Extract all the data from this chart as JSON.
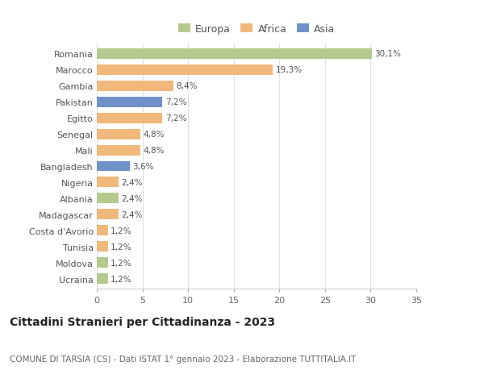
{
  "countries": [
    "Romania",
    "Marocco",
    "Gambia",
    "Pakistan",
    "Egitto",
    "Senegal",
    "Mali",
    "Bangladesh",
    "Nigeria",
    "Albania",
    "Madagascar",
    "Costa d'Avorio",
    "Tunisia",
    "Moldova",
    "Ucraina"
  ],
  "values": [
    30.1,
    19.3,
    8.4,
    7.2,
    7.2,
    4.8,
    4.8,
    3.6,
    2.4,
    2.4,
    2.4,
    1.2,
    1.2,
    1.2,
    1.2
  ],
  "labels": [
    "30,1%",
    "19,3%",
    "8,4%",
    "7,2%",
    "7,2%",
    "4,8%",
    "4,8%",
    "3,6%",
    "2,4%",
    "2,4%",
    "2,4%",
    "1,2%",
    "1,2%",
    "1,2%",
    "1,2%"
  ],
  "regions": [
    "Europa",
    "Africa",
    "Africa",
    "Asia",
    "Africa",
    "Africa",
    "Africa",
    "Asia",
    "Africa",
    "Europa",
    "Africa",
    "Africa",
    "Africa",
    "Europa",
    "Europa"
  ],
  "colors": {
    "Europa": "#b5c98e",
    "Africa": "#f0b87a",
    "Asia": "#7090c8"
  },
  "title": "Cittadini Stranieri per Cittadinanza - 2023",
  "subtitle": "COMUNE DI TARSIA (CS) - Dati ISTAT 1° gennaio 2023 - Elaborazione TUTTITALIA.IT",
  "xlim": [
    0,
    35
  ],
  "xticks": [
    0,
    5,
    10,
    15,
    20,
    25,
    30,
    35
  ],
  "background_color": "#ffffff",
  "grid_color": "#e0e0e0",
  "bar_height": 0.65,
  "label_fontsize": 7.5,
  "ytick_fontsize": 8,
  "xtick_fontsize": 8,
  "title_fontsize": 10,
  "subtitle_fontsize": 7.5
}
